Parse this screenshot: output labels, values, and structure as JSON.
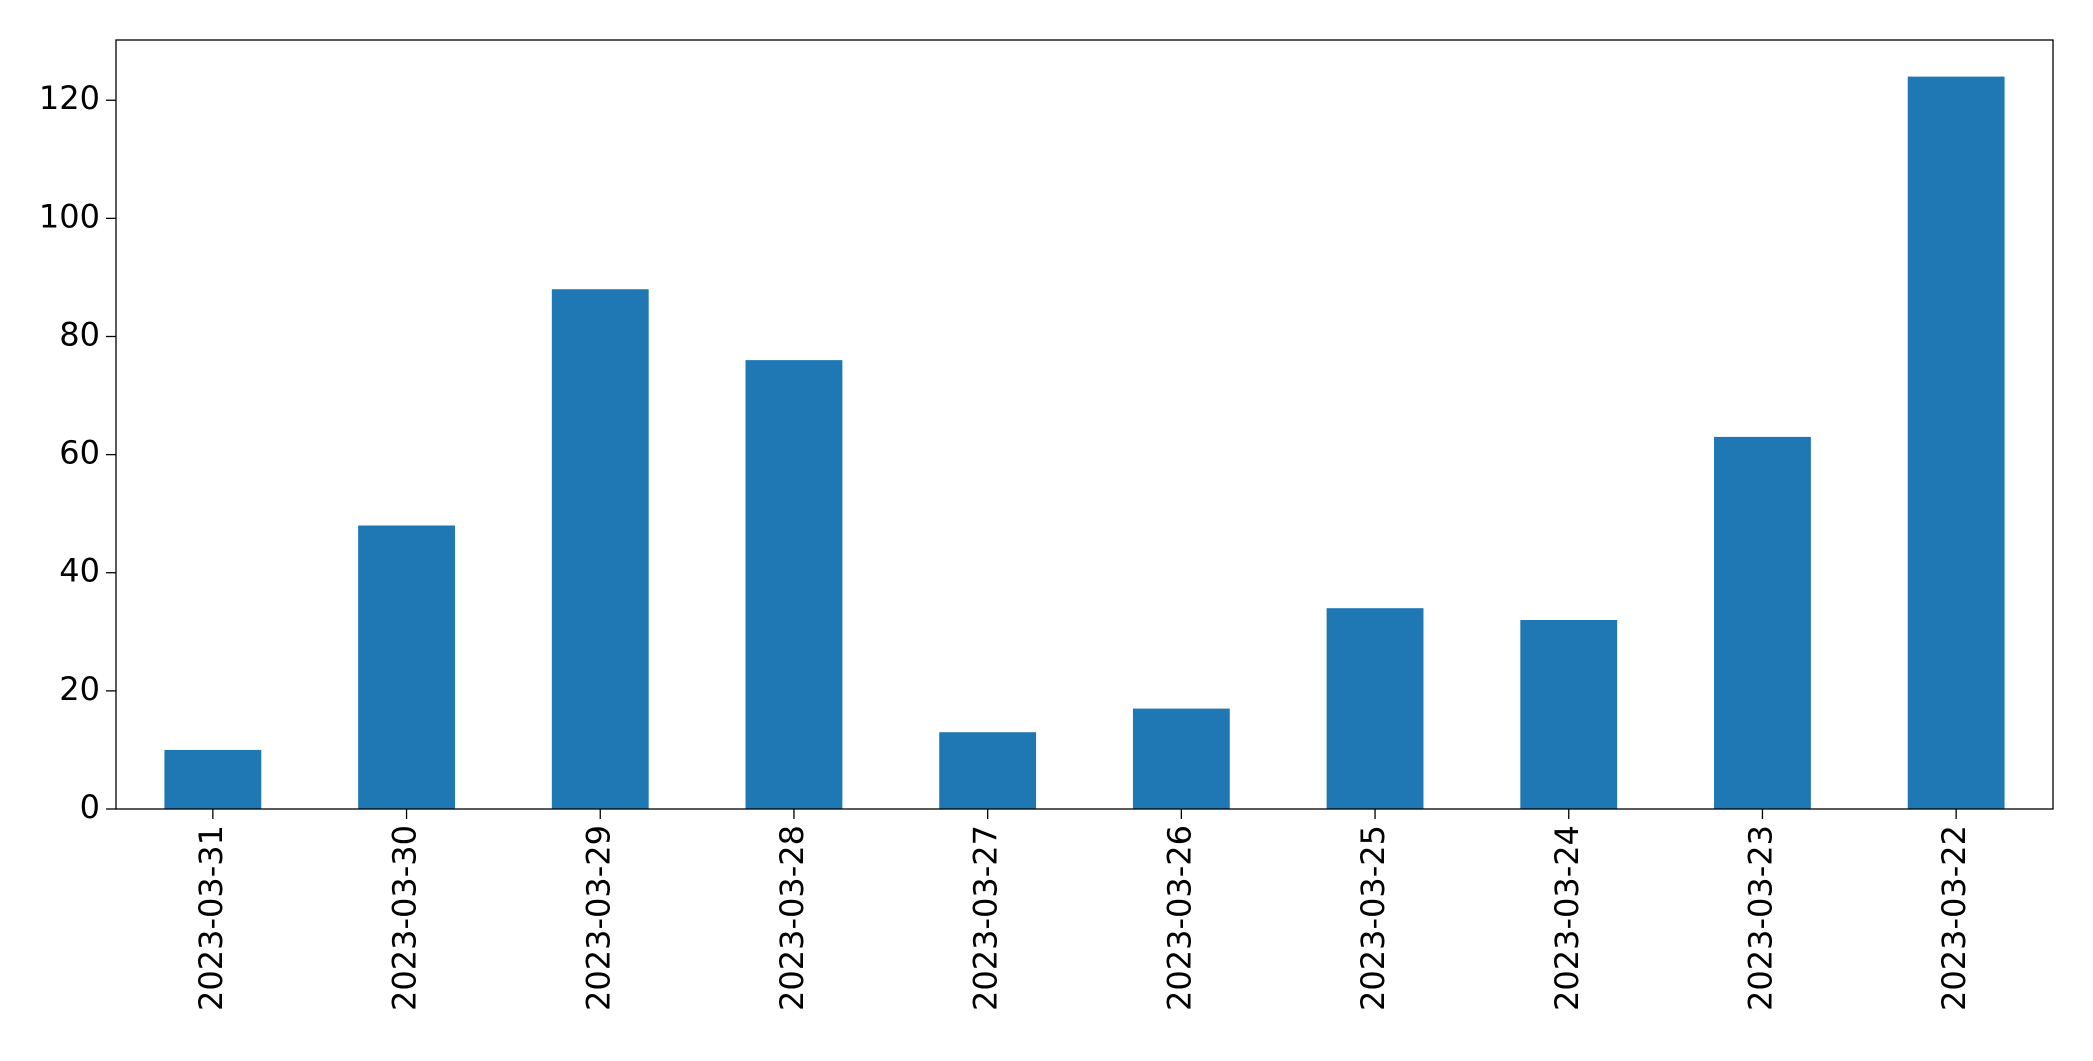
{
  "chart_data": {
    "type": "bar",
    "categories": [
      "2023-03-31",
      "2023-03-30",
      "2023-03-29",
      "2023-03-28",
      "2023-03-27",
      "2023-03-26",
      "2023-03-25",
      "2023-03-24",
      "2023-03-23",
      "2023-03-22"
    ],
    "values": [
      10,
      48,
      88,
      76,
      13,
      17,
      34,
      32,
      63,
      124
    ],
    "color": "#1f77b4",
    "ylim": [
      0,
      130.2
    ],
    "yticks": [
      0,
      20,
      40,
      60,
      80,
      100,
      120
    ],
    "grid": false
  }
}
